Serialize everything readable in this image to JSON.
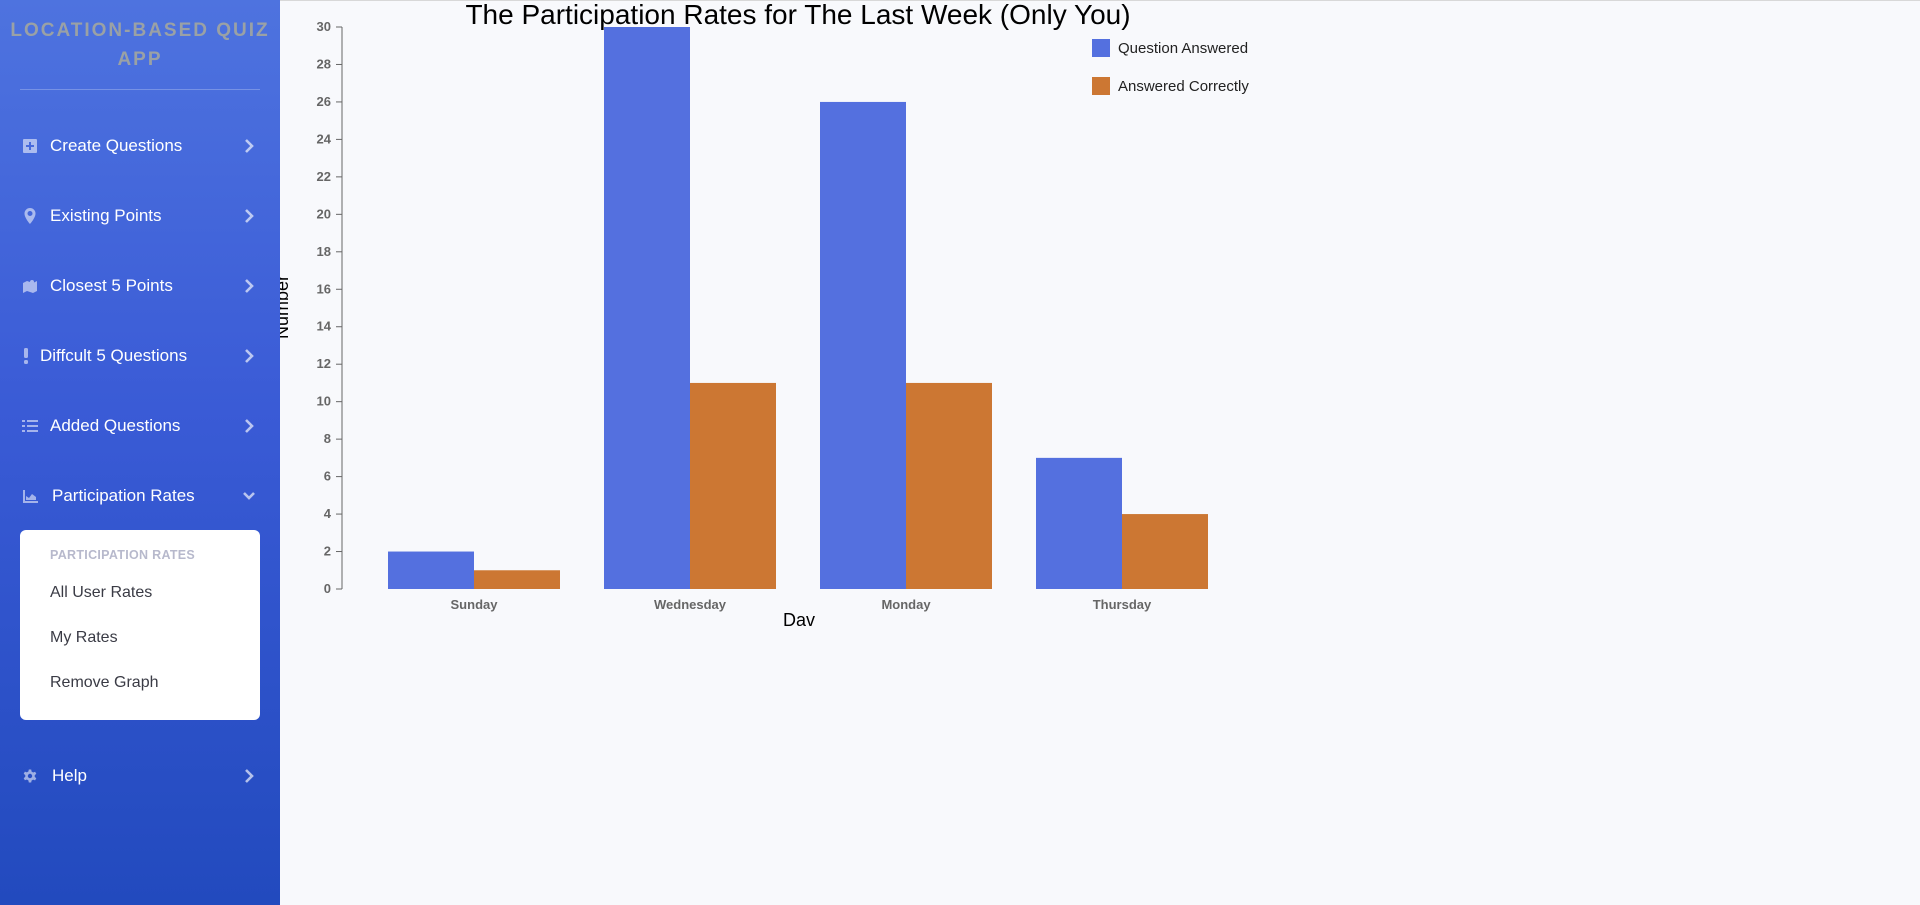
{
  "app": {
    "brand": "LOCATION-BASED QUIZ APP"
  },
  "sidebar": {
    "items": [
      {
        "label": "Create Questions",
        "icon": "plus-square-icon"
      },
      {
        "label": "Existing Points",
        "icon": "map-marker-icon"
      },
      {
        "label": "Closest 5 Points",
        "icon": "map-icon"
      },
      {
        "label": "Diffcult 5 Questions",
        "icon": "exclamation-icon"
      },
      {
        "label": "Added Questions",
        "icon": "list-icon"
      },
      {
        "label": "Participation Rates",
        "icon": "area-chart-icon",
        "expanded": true
      },
      {
        "label": "Help",
        "icon": "gear-icon"
      }
    ],
    "submenu": {
      "header": "PARTICIPATION RATES",
      "items": [
        "All User Rates",
        "My Rates",
        "Remove Graph"
      ]
    }
  },
  "colors": {
    "sidebar_top": "#4e73df",
    "sidebar_bottom": "#224abe",
    "series_answered": "#5470df",
    "series_correct": "#cc7733"
  },
  "chart_data": {
    "type": "bar",
    "title": "The Participation Rates for The Last Week (Only You)",
    "xlabel": "Dav",
    "ylabel": "Number",
    "categories": [
      "Sunday",
      "Wednesday",
      "Monday",
      "Thursday"
    ],
    "series": [
      {
        "name": "Question Answered",
        "values": [
          2,
          30,
          26,
          7
        ]
      },
      {
        "name": "Answered Correctly",
        "values": [
          1,
          11,
          11,
          4
        ]
      }
    ],
    "ylim": [
      0,
      30
    ],
    "yticks": [
      0,
      2,
      4,
      6,
      8,
      10,
      12,
      14,
      16,
      18,
      20,
      22,
      24,
      26,
      28,
      30
    ],
    "grid": false,
    "legend_position": "top-right"
  }
}
